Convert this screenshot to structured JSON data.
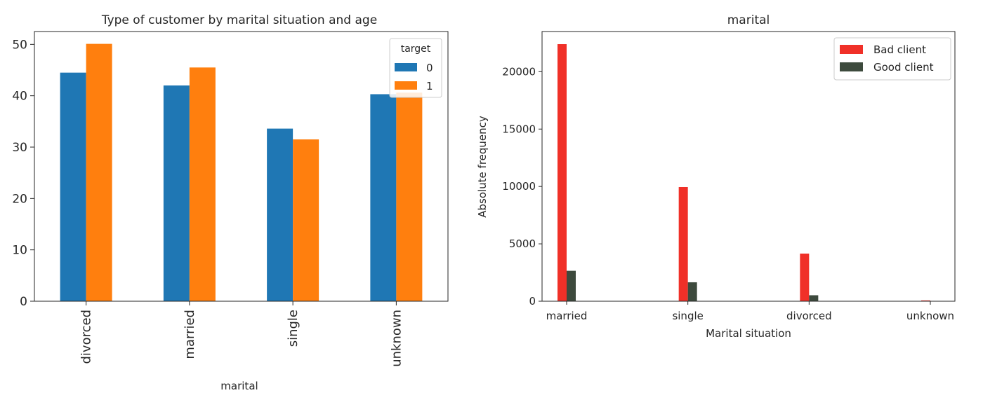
{
  "chart_data": [
    {
      "type": "bar",
      "title": "Type of customer by marital situation and age",
      "xlabel": "marital",
      "ylabel": "",
      "categories": [
        "divorced",
        "married",
        "single",
        "unknown"
      ],
      "ylim": [
        0,
        52.5
      ],
      "yticks": [
        0,
        10,
        20,
        30,
        40,
        50
      ],
      "legend": {
        "title": "target",
        "placement": "top-right"
      },
      "series": [
        {
          "name": "0",
          "color": "#1f77b4",
          "values": [
            44.5,
            42.0,
            33.6,
            40.3
          ]
        },
        {
          "name": "1",
          "color": "#ff7f0e",
          "values": [
            50.1,
            45.5,
            31.5,
            40.6
          ]
        }
      ]
    },
    {
      "type": "bar",
      "title": "marital",
      "xlabel": "Marital situation",
      "ylabel": "Absolute frequency",
      "categories": [
        "married",
        "single",
        "divorced",
        "unknown"
      ],
      "ylim": [
        0,
        23500
      ],
      "yticks": [
        0,
        5000,
        10000,
        15000,
        20000
      ],
      "legend": {
        "placement": "top-right"
      },
      "series": [
        {
          "name": "Bad client",
          "color": "#f03028",
          "values": [
            22400,
            9950,
            4150,
            70
          ]
        },
        {
          "name": "Good client",
          "color": "#3d4a3d",
          "values": [
            2650,
            1650,
            520,
            10
          ]
        }
      ]
    }
  ]
}
